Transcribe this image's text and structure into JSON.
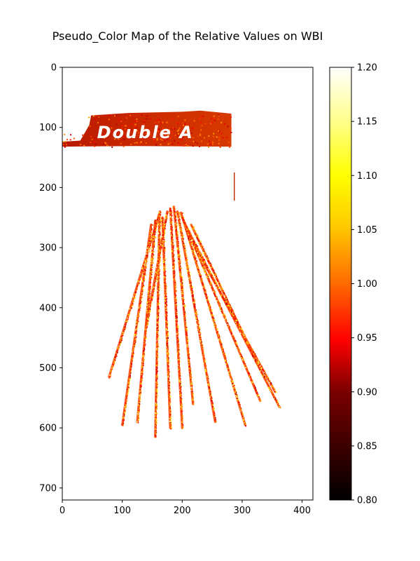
{
  "chart_data": {
    "type": "heatmap",
    "title": "Pseudo_Color Map of the Relative Values on WBI",
    "xlabel": "",
    "ylabel": "",
    "xlim": [
      0,
      418
    ],
    "ylim": [
      720,
      0
    ],
    "x_ticks": [
      0,
      100,
      200,
      300,
      400
    ],
    "y_ticks": [
      0,
      100,
      200,
      300,
      400,
      500,
      600,
      700
    ],
    "colormap": "hot",
    "colorbar": {
      "min": 0.8,
      "max": 1.2,
      "ticks": [
        "0.80",
        "0.85",
        "0.90",
        "0.95",
        "1.00",
        "1.05",
        "1.10",
        "1.15",
        "1.20"
      ]
    },
    "image_label_text": "Double A",
    "label_region": {
      "x": [
        0,
        282
      ],
      "y": [
        70,
        132
      ],
      "typical_value": 0.95
    },
    "stalks": [
      {
        "base": [
          163,
          240
        ],
        "tip": [
          78,
          515
        ]
      },
      {
        "base": [
          148,
          262
        ],
        "tip": [
          100,
          595
        ]
      },
      {
        "base": [
          155,
          255
        ],
        "tip": [
          125,
          590
        ]
      },
      {
        "base": [
          162,
          245
        ],
        "tip": [
          155,
          615
        ]
      },
      {
        "base": [
          167,
          250
        ],
        "tip": [
          180,
          600
        ]
      },
      {
        "base": [
          180,
          235
        ],
        "tip": [
          200,
          600
        ]
      },
      {
        "base": [
          186,
          232
        ],
        "tip": [
          218,
          560
        ]
      },
      {
        "base": [
          192,
          240
        ],
        "tip": [
          255,
          590
        ]
      },
      {
        "base": [
          198,
          242
        ],
        "tip": [
          305,
          595
        ]
      },
      {
        "base": [
          200,
          250
        ],
        "tip": [
          330,
          555
        ]
      },
      {
        "base": [
          205,
          262
        ],
        "tip": [
          362,
          565
        ]
      },
      {
        "base": [
          215,
          262
        ],
        "tip": [
          300,
          440
        ]
      },
      {
        "base": [
          222,
          300
        ],
        "tip": [
          355,
          540
        ]
      },
      {
        "base": [
          175,
          240
        ],
        "tip": [
          140,
          430
        ]
      }
    ],
    "grid": false,
    "legend": "none"
  }
}
